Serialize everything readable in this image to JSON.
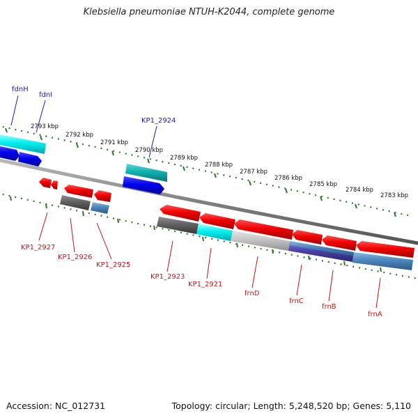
{
  "title": "Klebsiella pneumoniae NTUH-K2044, complete genome",
  "footer": {
    "accession": "Accession: NC_012731",
    "summary": "Topology: circular; Length: 5,248,520 bp; Genes: 5,110"
  },
  "colors": {
    "forward_label": "#1818c8",
    "reverse_label": "#cc1111",
    "tick": "#2a7a2a",
    "backbone": "#808080"
  },
  "kbp_ticks": [
    "2793 kbp",
    "2792 kbp",
    "2791 kbp",
    "2790 kbp",
    "2789 kbp",
    "2788 kbp",
    "2787 kbp",
    "2786 kbp",
    "2785 kbp",
    "2784 kbp",
    "2783 kbp"
  ],
  "forward_labels": [
    "fdnH",
    "fdnI",
    "KP1_2924"
  ],
  "reverse_labels": [
    "KP1_2927",
    "KP1_2926",
    "KP1_2925",
    "KP1_2923",
    "KP1_2921",
    "frnD",
    "frnC",
    "frnB",
    "frnA"
  ]
}
